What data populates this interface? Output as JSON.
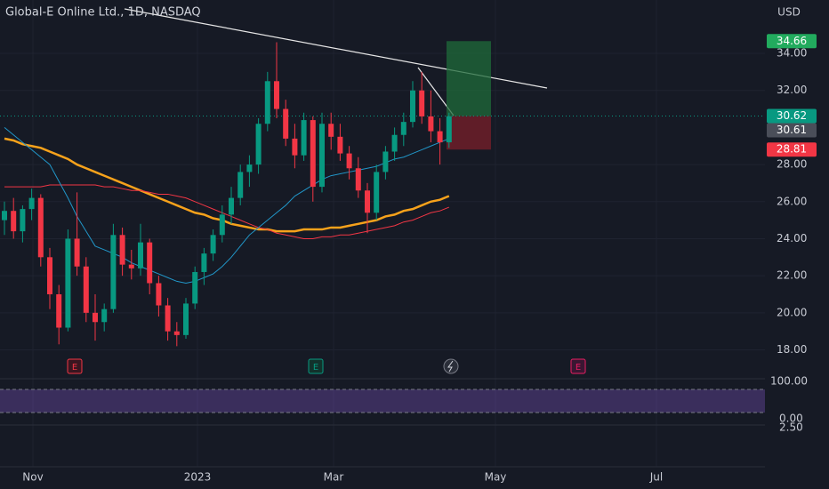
{
  "header": {
    "title": "Global-E Online Ltd., 1D, NASDAQ",
    "currency": "USD"
  },
  "chart_data": {
    "type": "candlestick",
    "candles": [
      [
        25.0,
        26.0,
        24.2,
        25.5
      ],
      [
        25.5,
        26.2,
        24.0,
        24.4
      ],
      [
        24.4,
        25.8,
        23.8,
        25.6
      ],
      [
        25.6,
        26.7,
        25.0,
        26.2
      ],
      [
        26.2,
        26.4,
        22.5,
        23.0
      ],
      [
        23.0,
        23.5,
        20.2,
        21.0
      ],
      [
        21.0,
        21.5,
        18.3,
        19.2
      ],
      [
        19.2,
        24.5,
        19.0,
        24.0
      ],
      [
        24.0,
        26.5,
        22.0,
        22.5
      ],
      [
        22.5,
        23.0,
        19.5,
        20.0
      ],
      [
        20.0,
        21.0,
        18.5,
        19.5
      ],
      [
        19.5,
        20.5,
        19.0,
        20.2
      ],
      [
        20.2,
        24.8,
        20.0,
        24.2
      ],
      [
        24.2,
        24.6,
        22.0,
        22.6
      ],
      [
        22.6,
        23.4,
        21.8,
        22.4
      ],
      [
        22.4,
        24.8,
        22.0,
        23.8
      ],
      [
        23.8,
        24.0,
        21.0,
        21.6
      ],
      [
        21.6,
        22.0,
        19.8,
        20.4
      ],
      [
        20.4,
        20.8,
        18.5,
        19.0
      ],
      [
        19.0,
        19.5,
        18.2,
        18.8
      ],
      [
        18.8,
        20.8,
        18.6,
        20.5
      ],
      [
        20.5,
        22.5,
        20.2,
        22.2
      ],
      [
        22.2,
        23.5,
        21.5,
        23.2
      ],
      [
        23.2,
        24.5,
        22.8,
        24.2
      ],
      [
        24.2,
        25.8,
        23.8,
        25.3
      ],
      [
        25.3,
        26.8,
        24.8,
        26.2
      ],
      [
        26.2,
        28.0,
        25.8,
        27.6
      ],
      [
        27.6,
        28.5,
        26.8,
        28.0
      ],
      [
        28.0,
        30.5,
        27.5,
        30.2
      ],
      [
        30.2,
        33.0,
        29.8,
        32.5
      ],
      [
        32.5,
        34.6,
        30.5,
        31.0
      ],
      [
        31.0,
        31.5,
        29.0,
        29.4
      ],
      [
        29.4,
        30.2,
        27.8,
        28.5
      ],
      [
        28.5,
        30.8,
        28.2,
        30.4
      ],
      [
        30.4,
        30.6,
        26.0,
        26.8
      ],
      [
        26.8,
        30.8,
        26.5,
        30.2
      ],
      [
        30.2,
        30.8,
        28.8,
        29.5
      ],
      [
        29.5,
        30.2,
        28.2,
        28.6
      ],
      [
        28.6,
        29.0,
        27.2,
        27.8
      ],
      [
        27.8,
        28.4,
        26.2,
        26.6
      ],
      [
        26.6,
        27.0,
        24.3,
        25.4
      ],
      [
        25.4,
        28.0,
        25.0,
        27.6
      ],
      [
        27.6,
        29.0,
        27.2,
        28.7
      ],
      [
        28.7,
        30.0,
        28.2,
        29.6
      ],
      [
        29.6,
        30.8,
        29.0,
        30.3
      ],
      [
        30.3,
        32.5,
        30.0,
        32.0
      ],
      [
        32.0,
        33.0,
        30.2,
        30.6
      ],
      [
        30.6,
        32.0,
        29.2,
        29.8
      ],
      [
        29.8,
        30.5,
        28.0,
        29.2
      ],
      [
        29.2,
        30.8,
        28.9,
        30.61
      ]
    ],
    "up_color": "#089981",
    "down_color": "#f23645",
    "lines": [
      {
        "color": "#f7a21b",
        "width": 2.5,
        "values": [
          29.4,
          29.3,
          29.1,
          29.0,
          28.9,
          28.7,
          28.5,
          28.3,
          28.0,
          27.8,
          27.6,
          27.4,
          27.2,
          27.0,
          26.8,
          26.6,
          26.4,
          26.2,
          26.0,
          25.8,
          25.6,
          25.4,
          25.3,
          25.1,
          25.0,
          24.8,
          24.7,
          24.6,
          24.5,
          24.5,
          24.4,
          24.4,
          24.4,
          24.5,
          24.5,
          24.5,
          24.6,
          24.6,
          24.7,
          24.8,
          24.9,
          25.0,
          25.2,
          25.3,
          25.5,
          25.6,
          25.8,
          26.0,
          26.1,
          26.3
        ]
      },
      {
        "color": "#f23645",
        "width": 1,
        "values": [
          26.8,
          26.8,
          26.8,
          26.8,
          26.8,
          26.9,
          26.9,
          26.9,
          26.9,
          26.9,
          26.9,
          26.8,
          26.8,
          26.7,
          26.6,
          26.6,
          26.5,
          26.4,
          26.4,
          26.3,
          26.2,
          26.0,
          25.8,
          25.6,
          25.4,
          25.2,
          25.0,
          24.8,
          24.6,
          24.5,
          24.3,
          24.2,
          24.1,
          24.0,
          24.0,
          24.1,
          24.1,
          24.2,
          24.2,
          24.3,
          24.4,
          24.5,
          24.6,
          24.7,
          24.9,
          25.0,
          25.2,
          25.4,
          25.5,
          25.7
        ]
      },
      {
        "color": "#2196c8",
        "width": 1,
        "values": [
          30.0,
          29.6,
          29.2,
          28.8,
          28.4,
          28.0,
          27.1,
          26.2,
          25.2,
          24.4,
          23.6,
          23.4,
          23.2,
          23.0,
          22.7,
          22.5,
          22.3,
          22.1,
          21.9,
          21.7,
          21.6,
          21.7,
          21.9,
          22.1,
          22.5,
          23.0,
          23.6,
          24.2,
          24.6,
          25.0,
          25.4,
          25.8,
          26.3,
          26.6,
          26.9,
          27.2,
          27.4,
          27.5,
          27.6,
          27.7,
          27.8,
          27.9,
          28.1,
          28.3,
          28.4,
          28.6,
          28.8,
          29.0,
          29.2,
          29.4
        ]
      }
    ],
    "ylim": [
      16.49,
      36.88
    ],
    "yticks": [
      {
        "value": 34,
        "label": "34.00"
      },
      {
        "value": 32,
        "label": "32.00"
      },
      {
        "value": 28,
        "label": "28.00"
      },
      {
        "value": 26,
        "label": "26.00"
      },
      {
        "value": 24,
        "label": "24.00"
      },
      {
        "value": 22,
        "label": "22.00"
      },
      {
        "value": 20,
        "label": "20.00"
      },
      {
        "value": 18,
        "label": "18.00"
      }
    ],
    "price_tags": [
      {
        "value": 34.66,
        "color": "#22ab5e"
      },
      {
        "value": 30.62,
        "color": "#089981"
      },
      {
        "value": 30.61,
        "color": "#4a4e59"
      },
      {
        "value": 28.81,
        "color": "#f23645"
      }
    ],
    "x_labels": [
      "Nov",
      "2023",
      "Mar",
      "May",
      "Jul"
    ]
  },
  "indicators": {
    "rsi_labels": [
      "100.00",
      "0.00"
    ],
    "macd_labels": [
      "2.50"
    ]
  }
}
